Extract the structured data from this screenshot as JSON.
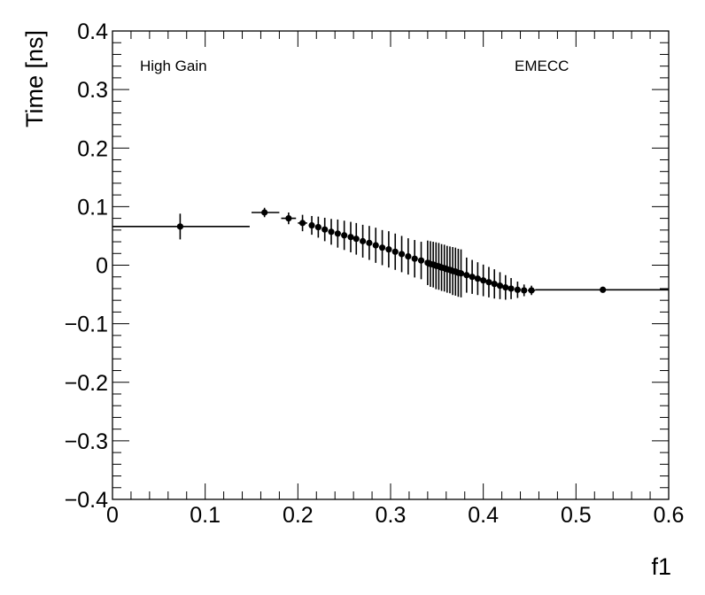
{
  "chart_data": {
    "type": "scatter",
    "xlabel": "f1",
    "ylabel": "Time [ns]",
    "xlim": [
      0,
      0.6
    ],
    "ylim": [
      -0.4,
      0.4
    ],
    "x_ticks": [
      0,
      0.1,
      0.2,
      0.3,
      0.4,
      0.5,
      0.6
    ],
    "x_tick_labels": [
      "0",
      "0.1",
      "0.2",
      "0.3",
      "0.4",
      "0.5",
      "0.6"
    ],
    "y_ticks": [
      -0.4,
      -0.3,
      -0.2,
      -0.1,
      0,
      0.1,
      0.2,
      0.3,
      0.4
    ],
    "y_tick_labels": [
      "−0.4",
      "−0.3",
      "−0.2",
      "−0.1",
      "0",
      "0.1",
      "0.2",
      "0.3",
      "0.4"
    ],
    "grid": false,
    "annotations": [
      "High Gain",
      "EMECC"
    ],
    "series": [
      {
        "points": [
          {
            "x": 0.073,
            "y": 0.066,
            "xlo": 0.0,
            "xhi": 0.148,
            "err": 0.022
          },
          {
            "x": 0.164,
            "y": 0.09,
            "xlo": 0.15,
            "xhi": 0.18,
            "err": 0.008
          },
          {
            "x": 0.19,
            "y": 0.08,
            "xlo": 0.182,
            "xhi": 0.198,
            "err": 0.01
          },
          {
            "x": 0.205,
            "y": 0.072,
            "xlo": 0.2,
            "xhi": 0.21,
            "err": 0.014
          },
          {
            "x": 0.215,
            "y": 0.068,
            "err": 0.016
          },
          {
            "x": 0.222,
            "y": 0.065,
            "err": 0.018
          },
          {
            "x": 0.229,
            "y": 0.061,
            "err": 0.02
          },
          {
            "x": 0.236,
            "y": 0.057,
            "err": 0.022
          },
          {
            "x": 0.243,
            "y": 0.054,
            "err": 0.024
          },
          {
            "x": 0.25,
            "y": 0.051,
            "err": 0.025
          },
          {
            "x": 0.257,
            "y": 0.048,
            "err": 0.026
          },
          {
            "x": 0.263,
            "y": 0.045,
            "err": 0.027
          },
          {
            "x": 0.27,
            "y": 0.041,
            "err": 0.028
          },
          {
            "x": 0.277,
            "y": 0.038,
            "err": 0.029
          },
          {
            "x": 0.284,
            "y": 0.034,
            "err": 0.03
          },
          {
            "x": 0.291,
            "y": 0.03,
            "err": 0.03
          },
          {
            "x": 0.298,
            "y": 0.027,
            "err": 0.031
          },
          {
            "x": 0.305,
            "y": 0.023,
            "err": 0.031
          },
          {
            "x": 0.312,
            "y": 0.019,
            "err": 0.031
          },
          {
            "x": 0.319,
            "y": 0.015,
            "err": 0.031
          },
          {
            "x": 0.326,
            "y": 0.011,
            "err": 0.032
          },
          {
            "x": 0.333,
            "y": 0.008,
            "err": 0.032
          },
          {
            "x": 0.34,
            "y": 0.004,
            "err": 0.038
          },
          {
            "x": 0.343,
            "y": 0.002,
            "err": 0.039
          },
          {
            "x": 0.346,
            "y": 0.001,
            "err": 0.039
          },
          {
            "x": 0.349,
            "y": -0.001,
            "err": 0.04
          },
          {
            "x": 0.352,
            "y": -0.002,
            "err": 0.04
          },
          {
            "x": 0.355,
            "y": -0.004,
            "err": 0.04
          },
          {
            "x": 0.358,
            "y": -0.005,
            "err": 0.04
          },
          {
            "x": 0.361,
            "y": -0.007,
            "err": 0.04
          },
          {
            "x": 0.364,
            "y": -0.008,
            "err": 0.04
          },
          {
            "x": 0.367,
            "y": -0.01,
            "err": 0.041
          },
          {
            "x": 0.37,
            "y": -0.011,
            "err": 0.041
          },
          {
            "x": 0.373,
            "y": -0.013,
            "err": 0.041
          },
          {
            "x": 0.376,
            "y": -0.014,
            "err": 0.041
          },
          {
            "x": 0.382,
            "y": -0.017,
            "err": 0.03
          },
          {
            "x": 0.388,
            "y": -0.02,
            "err": 0.029
          },
          {
            "x": 0.394,
            "y": -0.023,
            "err": 0.028
          },
          {
            "x": 0.4,
            "y": -0.026,
            "err": 0.027
          },
          {
            "x": 0.406,
            "y": -0.029,
            "err": 0.026
          },
          {
            "x": 0.412,
            "y": -0.032,
            "err": 0.025
          },
          {
            "x": 0.418,
            "y": -0.035,
            "err": 0.023
          },
          {
            "x": 0.424,
            "y": -0.038,
            "err": 0.021
          },
          {
            "x": 0.43,
            "y": -0.04,
            "err": 0.018
          },
          {
            "x": 0.437,
            "y": -0.042,
            "err": 0.014
          },
          {
            "x": 0.444,
            "y": -0.043,
            "err": 0.01
          },
          {
            "x": 0.452,
            "y": -0.043,
            "xlo": 0.448,
            "xhi": 0.456,
            "err": 0.008
          },
          {
            "x": 0.529,
            "y": -0.042,
            "xlo": 0.456,
            "xhi": 0.6,
            "err": 0.004
          }
        ]
      }
    ]
  }
}
